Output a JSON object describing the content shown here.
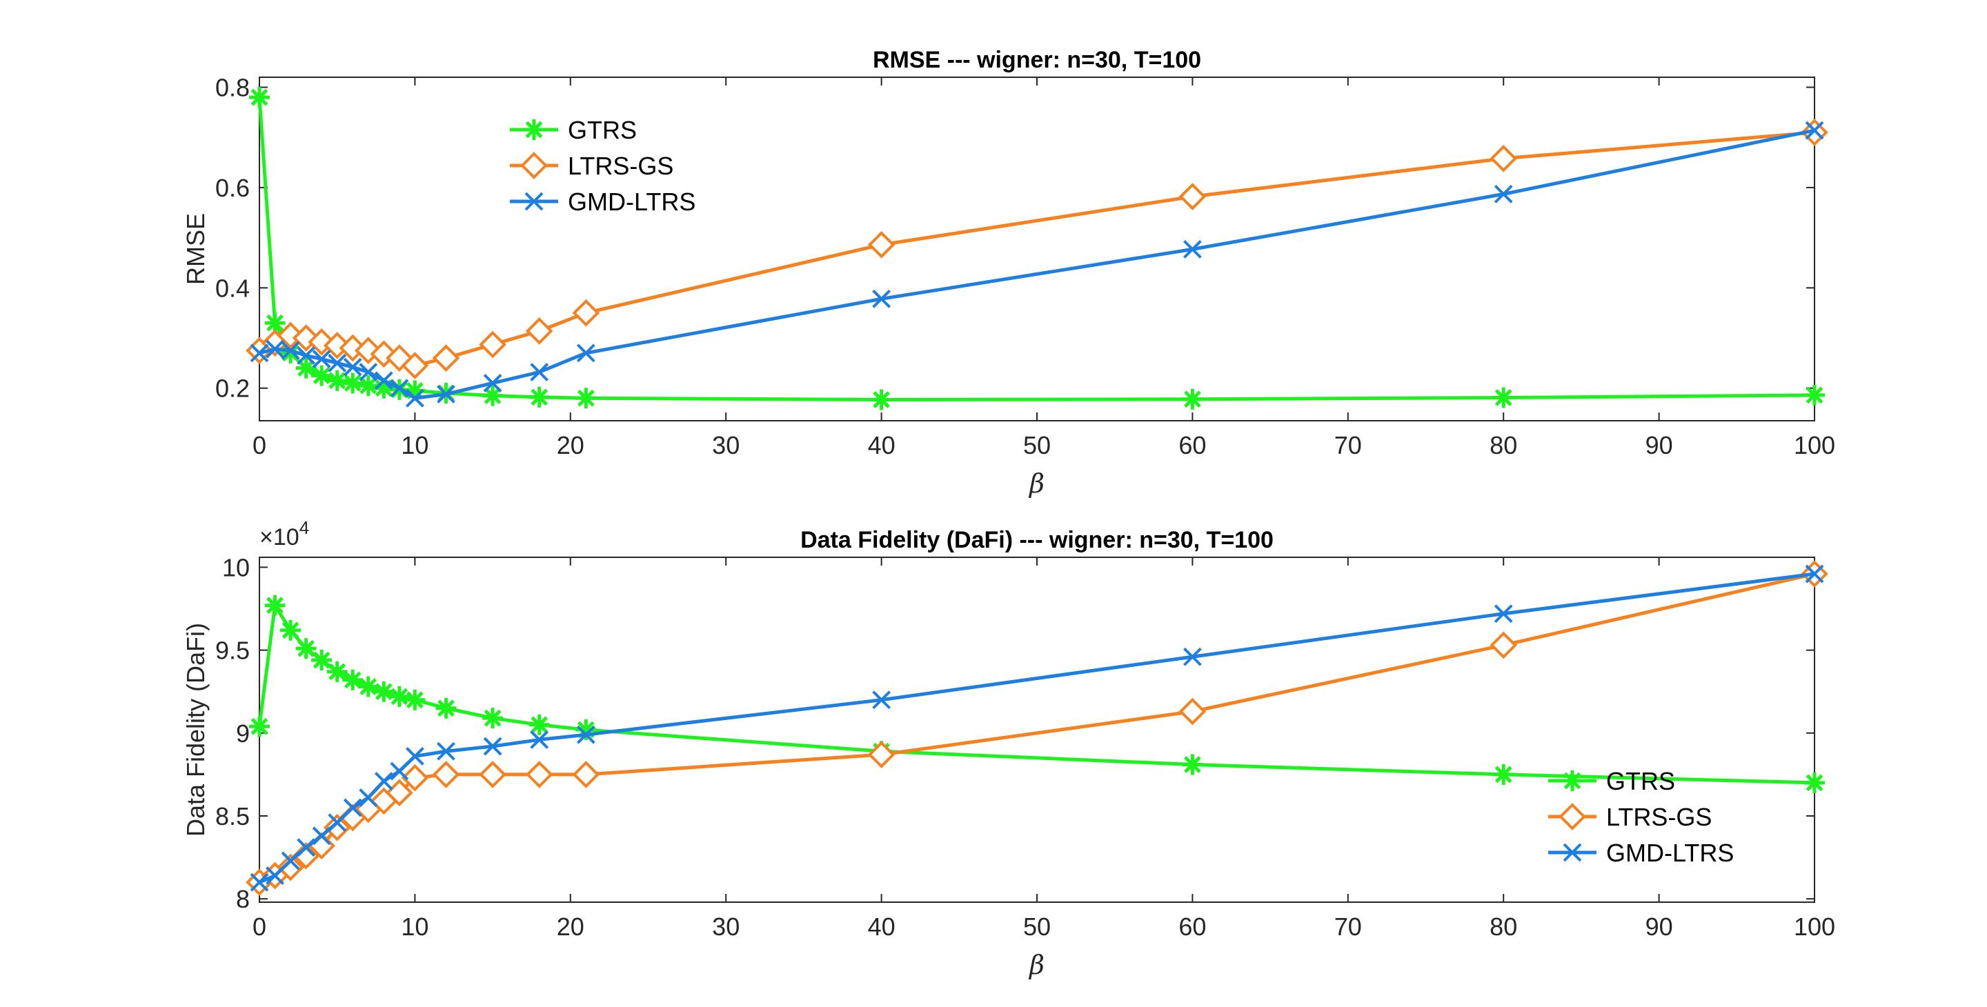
{
  "colors": {
    "GTRS": "#1df21d",
    "LTRS-GS": "#f5821f",
    "GMD-LTRS": "#1f7fe0"
  },
  "chart_data": [
    {
      "type": "line",
      "title": "RMSE --- wigner: n=30, T=100",
      "xlabel": "β",
      "ylabel": "RMSE",
      "xlim": [
        0,
        100
      ],
      "ylim": [
        0.135,
        0.82
      ],
      "xticks": [
        0,
        10,
        20,
        30,
        40,
        50,
        60,
        70,
        80,
        90,
        100
      ],
      "yticks": [
        0.2,
        0.4,
        0.6,
        0.8
      ],
      "ytick_labels": [
        "0.2",
        "0.4",
        "0.6",
        "0.8"
      ],
      "legend_placement": "upper-center-left",
      "x": [
        0,
        1,
        2,
        3,
        4,
        5,
        6,
        7,
        8,
        9,
        10,
        12,
        15,
        18,
        21,
        40,
        60,
        80,
        100
      ],
      "series": [
        {
          "name": "GTRS",
          "marker": "asterisk",
          "values": [
            0.78,
            0.33,
            0.27,
            0.24,
            0.225,
            0.215,
            0.21,
            0.205,
            0.2,
            0.197,
            0.195,
            0.19,
            0.185,
            0.182,
            0.18,
            0.177,
            0.178,
            0.181,
            0.186
          ]
        },
        {
          "name": "LTRS-GS",
          "marker": "diamond",
          "values": [
            0.275,
            0.29,
            0.305,
            0.3,
            0.292,
            0.285,
            0.28,
            0.275,
            0.268,
            0.26,
            0.245,
            0.26,
            0.287,
            0.314,
            0.35,
            0.486,
            0.582,
            0.658,
            0.71
          ]
        },
        {
          "name": "GMD-LTRS",
          "marker": "x",
          "values": [
            0.27,
            0.278,
            0.275,
            0.265,
            0.258,
            0.25,
            0.242,
            0.232,
            0.215,
            0.2,
            0.18,
            0.188,
            0.21,
            0.232,
            0.27,
            0.378,
            0.477,
            0.587,
            0.714
          ]
        }
      ]
    },
    {
      "type": "line",
      "title": "Data Fidelity (DaFi) --- wigner: n=30, T=100",
      "xlabel": "β",
      "ylabel": "Data Fidelity (DaFi)",
      "y_multiplier": "×10",
      "y_multiplier_exp": "4",
      "xlim": [
        0,
        100
      ],
      "ylim": [
        79800,
        100600
      ],
      "xticks": [
        0,
        10,
        20,
        30,
        40,
        50,
        60,
        70,
        80,
        90,
        100
      ],
      "yticks": [
        80000,
        85000,
        90000,
        95000,
        100000
      ],
      "ytick_labels": [
        "8",
        "8.5",
        "9",
        "9.5",
        "10"
      ],
      "legend_placement": "lower-right",
      "x": [
        0,
        1,
        2,
        3,
        4,
        5,
        6,
        7,
        8,
        9,
        10,
        12,
        15,
        18,
        21,
        40,
        60,
        80,
        100
      ],
      "series": [
        {
          "name": "GTRS",
          "marker": "asterisk",
          "values": [
            90400,
            97700,
            96200,
            95100,
            94400,
            93700,
            93200,
            92800,
            92500,
            92200,
            92000,
            91500,
            90900,
            90500,
            90200,
            88900,
            88100,
            87500,
            87000
          ]
        },
        {
          "name": "LTRS-GS",
          "marker": "diamond",
          "values": [
            81000,
            81400,
            81900,
            82600,
            83200,
            84300,
            84900,
            85400,
            85900,
            86400,
            87300,
            87500,
            87500,
            87500,
            87500,
            88700,
            91300,
            95300,
            99600
          ]
        },
        {
          "name": "GMD-LTRS",
          "marker": "x",
          "values": [
            81000,
            81400,
            82300,
            83100,
            83800,
            84600,
            85500,
            86100,
            87100,
            87700,
            88600,
            88900,
            89200,
            89600,
            89900,
            92000,
            94600,
            97200,
            99600
          ]
        }
      ]
    }
  ]
}
